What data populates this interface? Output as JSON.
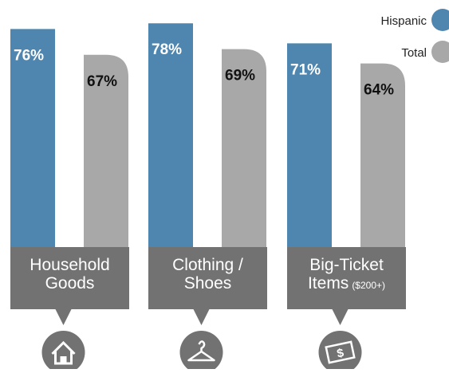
{
  "chart_data": {
    "type": "bar",
    "categories": [
      "Household Goods",
      "Clothing / Shoes",
      "Big-Ticket Items"
    ],
    "category_lines": [
      {
        "line1": "Household",
        "line2": "Goods",
        "line2_suffix": ""
      },
      {
        "line1": "Clothing /",
        "line2": "Shoes",
        "line2_suffix": ""
      },
      {
        "line1": "Big-Ticket",
        "line2": "Items",
        "line2_suffix": "($200+)"
      }
    ],
    "series": [
      {
        "name": "Hispanic",
        "values": [
          76,
          78,
          71
        ],
        "labels": [
          "76%",
          "78%",
          "71%"
        ],
        "color": "#4e86b0"
      },
      {
        "name": "Total",
        "values": [
          67,
          69,
          64
        ],
        "labels": [
          "67%",
          "69%",
          "64%"
        ],
        "color": "#a8a8a8"
      }
    ],
    "category_icons": [
      "house-icon",
      "hanger-icon",
      "money-bill-icon"
    ],
    "label_box_color": "#727272",
    "ylim": [
      0,
      100
    ],
    "legend_position": "top-right",
    "grid": false
  }
}
